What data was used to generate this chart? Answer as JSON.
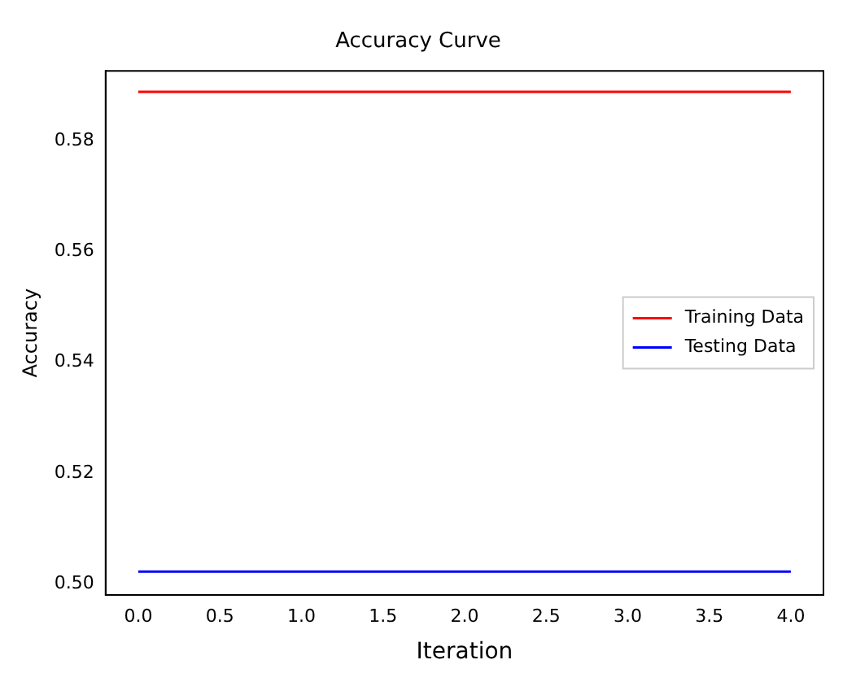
{
  "chart_data": {
    "type": "line",
    "title": "Accuracy Curve",
    "xlabel": "Iteration",
    "ylabel": "Accuracy",
    "x": [
      0,
      4
    ],
    "series": [
      {
        "name": "Training Data",
        "color": "#ff0000",
        "values": [
          0.5888,
          0.5888
        ]
      },
      {
        "name": "Testing Data",
        "color": "#0000ff",
        "values": [
          0.5022,
          0.5022
        ]
      }
    ],
    "xlim": [
      -0.2,
      4.2
    ],
    "xticks": [
      {
        "value": 0,
        "label": "0.0"
      },
      {
        "value": 0.5,
        "label": "0.5"
      },
      {
        "value": 1,
        "label": "1.0"
      },
      {
        "value": 1.5,
        "label": "1.5"
      },
      {
        "value": 2,
        "label": "2.0"
      },
      {
        "value": 2.5,
        "label": "2.5"
      },
      {
        "value": 3,
        "label": "3.0"
      },
      {
        "value": 3.5,
        "label": "3.5"
      },
      {
        "value": 4,
        "label": "4.0"
      }
    ],
    "ylim": [
      0.498,
      0.5926
    ],
    "yticks": [
      {
        "value": 0.5,
        "label": "0.50"
      },
      {
        "value": 0.52,
        "label": "0.52"
      },
      {
        "value": 0.54,
        "label": "0.54"
      },
      {
        "value": 0.56,
        "label": "0.56"
      },
      {
        "value": 0.58,
        "label": "0.58"
      }
    ],
    "grid": false,
    "legend": "right",
    "marker": "none",
    "line_style": "solid"
  }
}
